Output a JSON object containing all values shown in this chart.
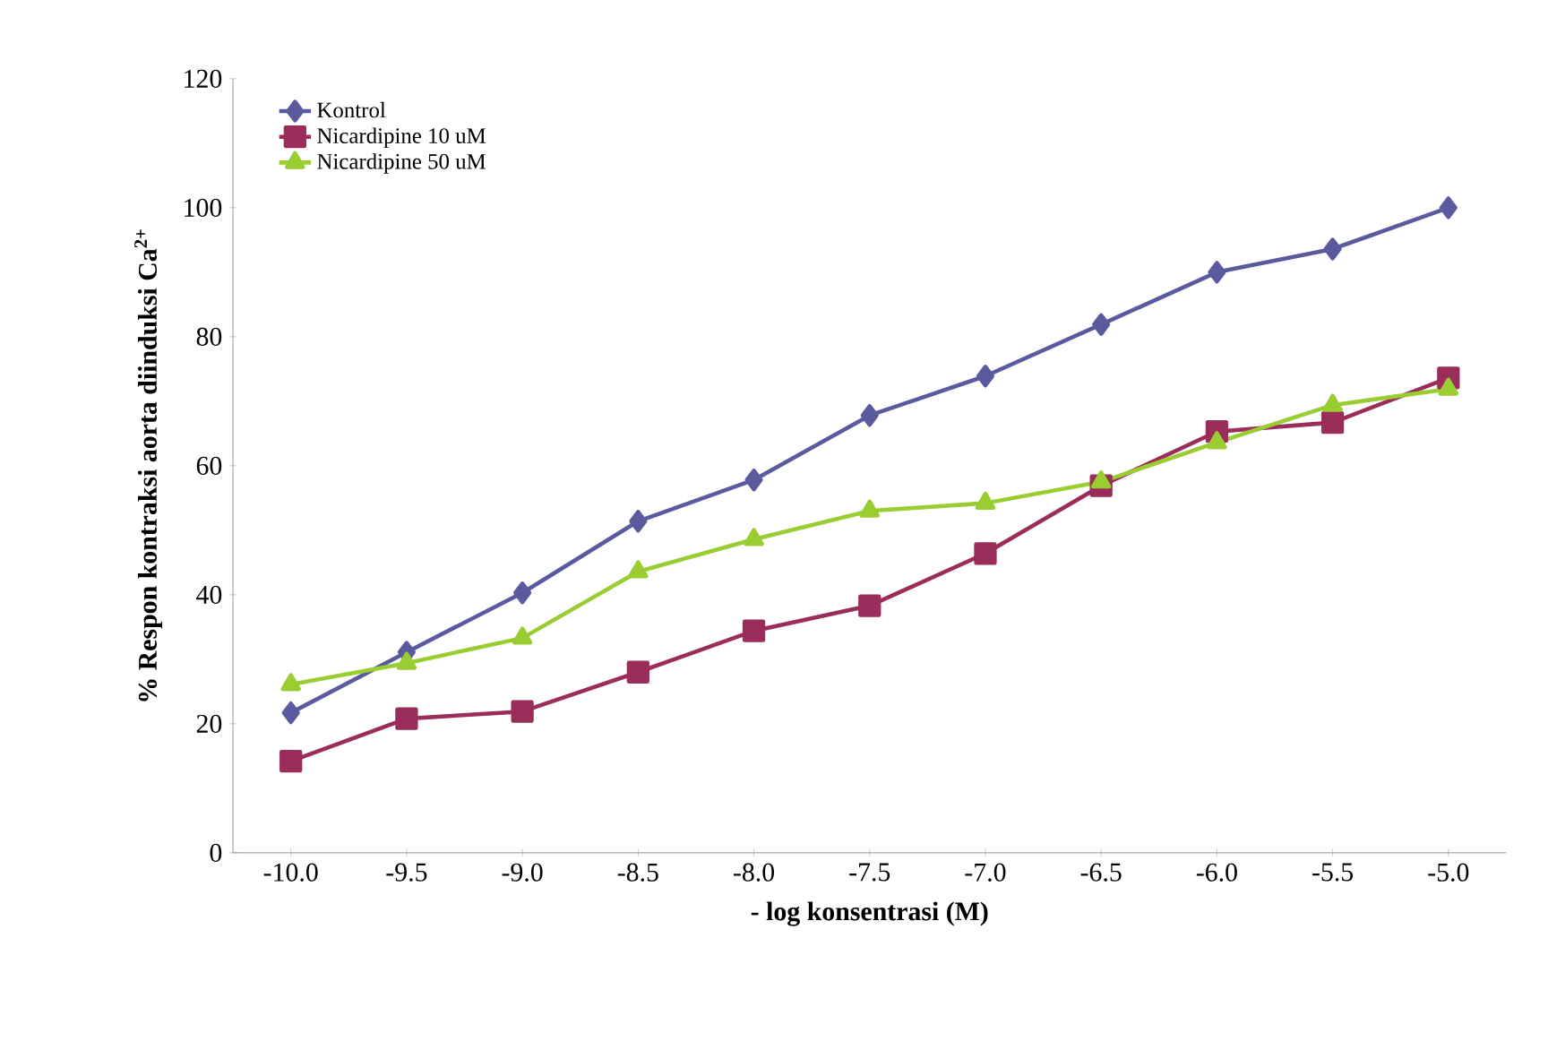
{
  "chart_data": {
    "type": "line",
    "xlabel": "- log konsentrasi (M)",
    "ylabel": "% Respon kontraksi aorta  diinduksi Ca$^{2+}$",
    "categories": [
      "-10.0",
      "-9.5",
      "-9.0",
      "-8.5",
      "-8.0",
      "-7.5",
      "-7.0",
      "-6.5",
      "-6.0",
      "-5.5",
      "-5.0"
    ],
    "ylim": [
      0,
      120
    ],
    "yticks": [
      0,
      20,
      40,
      60,
      80,
      100,
      120
    ],
    "grid": false,
    "legend": "top left",
    "series": [
      {
        "name": "Kontrol",
        "color": "#5a5a9e",
        "marker": "diamond",
        "values": [
          21.7,
          31.1,
          40.3,
          51.4,
          57.8,
          67.8,
          73.9,
          81.9,
          90,
          93.6,
          100
        ]
      },
      {
        "name": "Nicardipine 10 uM",
        "color": "#9b2d5a",
        "marker": "square",
        "values": [
          14.2,
          20.8,
          21.9,
          28,
          34.4,
          38.3,
          46.4,
          56.9,
          65.3,
          66.7,
          73.6
        ]
      },
      {
        "name": "Nicardipine 50 uM",
        "color": "#9acd32",
        "marker": "triangle",
        "values": [
          26.1,
          29.4,
          33.3,
          43.6,
          48.6,
          53,
          54.2,
          57.5,
          63.6,
          69.4,
          71.9
        ]
      }
    ]
  }
}
